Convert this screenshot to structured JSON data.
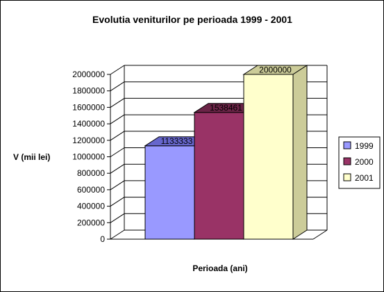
{
  "chart_data": {
    "type": "bar",
    "title": "Evolutia veniturilor pe perioada 1999 - 2001",
    "xlabel": "Perioada (ani)",
    "ylabel": "V (mii lei)",
    "ylim": [
      0,
      2000000
    ],
    "yticks": [
      "2000000",
      "1800000",
      "1600000",
      "1400000",
      "1200000",
      "1000000",
      "800000",
      "600000",
      "400000",
      "200000",
      "0"
    ],
    "grid": true,
    "legend_position": "right",
    "three_d": true,
    "series": [
      {
        "name": "1999",
        "value": 1133333,
        "label": "1133333",
        "face": "#9999ff",
        "top": "#6666cc"
      },
      {
        "name": "2000",
        "value": 1538461,
        "label": "1538461",
        "face": "#993366",
        "top": "#6b2447"
      },
      {
        "name": "2001",
        "value": 2000000,
        "label": "2000000",
        "face": "#ffffcc",
        "top": "#cccc99"
      }
    ]
  }
}
